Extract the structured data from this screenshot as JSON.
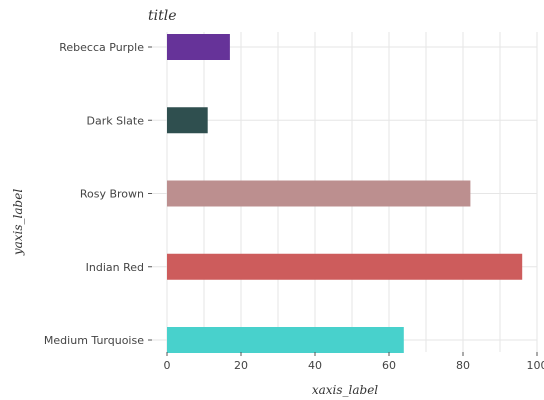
{
  "chart_data": {
    "type": "bar",
    "orientation": "horizontal",
    "title": "title",
    "xlabel": "xaxis_label",
    "ylabel": "yaxis_label",
    "categories": [
      "Medium Turquoise",
      "Indian Red",
      "Rosy Brown",
      "Dark Slate",
      "Rebecca Purple"
    ],
    "values": [
      64,
      96,
      82,
      11,
      17
    ],
    "colors": [
      "#48d1cc",
      "#cd5c5c",
      "#bc8f8f",
      "#2f4f4f",
      "#663399"
    ],
    "xlim": [
      0,
      100
    ],
    "xticks": [
      0,
      20,
      40,
      60,
      80,
      100
    ],
    "xtick_labels": [
      "0",
      "20",
      "40",
      "60",
      "80",
      "100"
    ],
    "grid": true
  }
}
